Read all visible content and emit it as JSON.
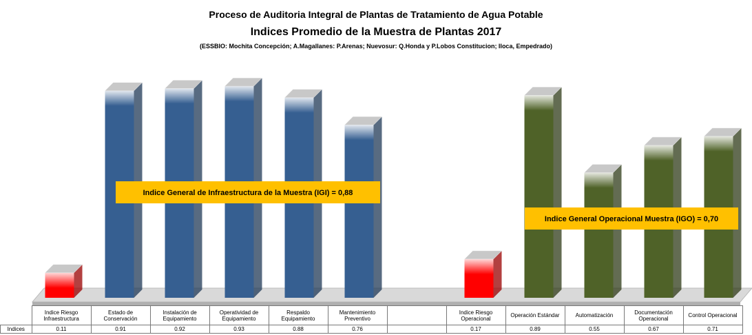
{
  "chart_data": {
    "type": "bar3d",
    "title": "Proceso de Auditoria Integral de Plantas de Tratamiento de Agua Potable",
    "subtitle": "Indices Promedio de la Muestra de Plantas 2017",
    "note": "(ESSBIO: Mochita Concepción;  A.Magallanes: P.Arenas;  Nuevosur: Q.Honda y P.Lobos Constitucion;  Iloca, Empedrado)",
    "categories": [
      "Indice Riesgo Infraestructura",
      "Estado de Conservación",
      "Instalación de Equipamiento",
      "Operatividad de Equipamiento",
      "Respaldo Equipamiento",
      "Mantenimiento Preventivo",
      null,
      "Indice Riesgo Operacional",
      "Operación Estándar",
      "Automatización",
      "Documentación Operacional",
      "Control Operacional"
    ],
    "series": [
      {
        "name": "Indices",
        "values": [
          0.11,
          0.91,
          0.92,
          0.93,
          0.88,
          0.76,
          null,
          0.17,
          0.89,
          0.55,
          0.67,
          0.71
        ],
        "colors": [
          "#ff0000",
          "#365f91",
          "#365f91",
          "#365f91",
          "#365f91",
          "#365f91",
          null,
          "#ff0000",
          "#4f6228",
          "#4f6228",
          "#4f6228",
          "#4f6228"
        ]
      }
    ],
    "annotations": [
      {
        "text": "Indice  General de Infraestructura  de la Muestra (IGI) = 0,88"
      },
      {
        "text": "Indice  General Operacional  Muestra  (IGO) = 0,70"
      }
    ]
  }
}
